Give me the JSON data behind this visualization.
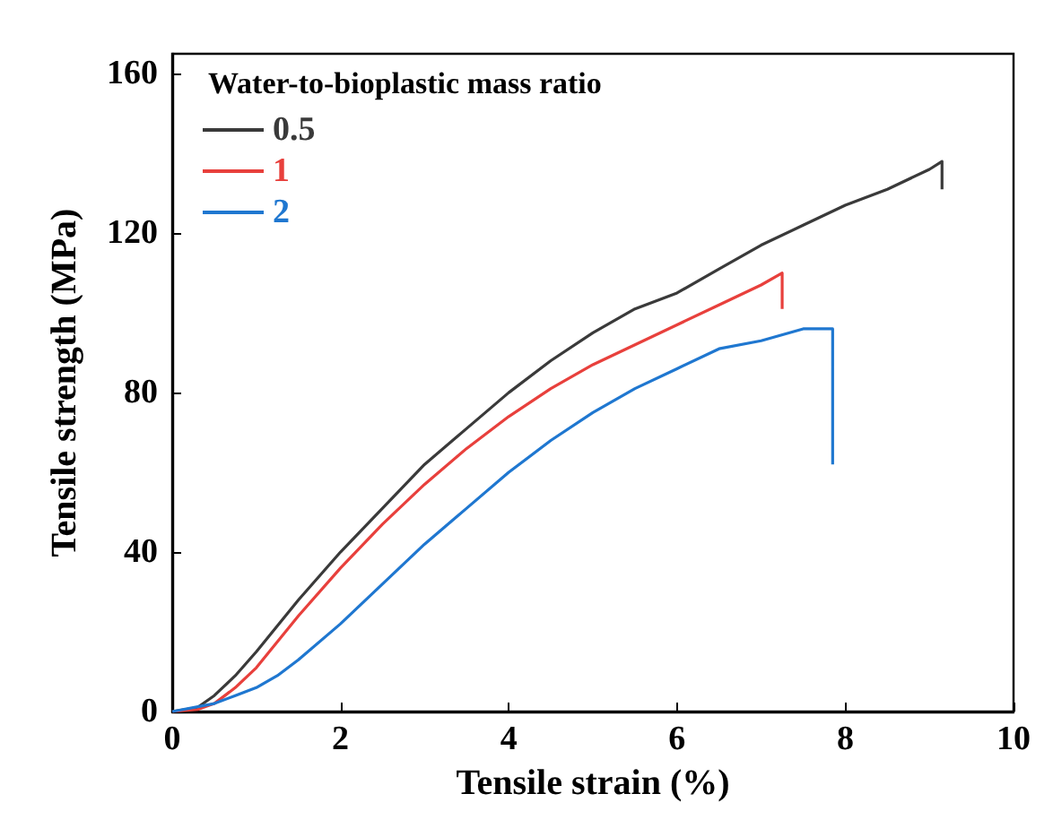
{
  "chart_data": {
    "type": "line",
    "xlabel": "Tensile strain (%)",
    "ylabel": "Tensile strength (MPa)",
    "legend_title": "Water-to-bioplastic mass ratio",
    "legend": "top left",
    "grid": false,
    "marker": "none",
    "line_style": "solid",
    "xlim": [
      0,
      10
    ],
    "xticks": [
      0,
      2,
      4,
      6,
      8,
      10
    ],
    "ylim": [
      0,
      165
    ],
    "yticks": [
      0,
      40,
      80,
      120,
      160
    ],
    "series": [
      {
        "name": "0.5",
        "color": "#3a3a3a",
        "x": [
          0,
          0.3,
          0.5,
          0.75,
          1,
          1.5,
          2,
          2.5,
          3,
          3.5,
          4,
          4.5,
          5,
          5.5,
          6,
          6.5,
          7,
          7.5,
          8,
          8.5,
          9,
          9.15,
          9.15
        ],
        "values": [
          0,
          1,
          4,
          9,
          15,
          28,
          40,
          51,
          62,
          71,
          80,
          88,
          95,
          101,
          105,
          111,
          117,
          122,
          127,
          131,
          136,
          138,
          131
        ]
      },
      {
        "name": "1",
        "color": "#e8403c",
        "x": [
          0,
          0.3,
          0.5,
          0.75,
          1,
          1.5,
          2,
          2.5,
          3,
          3.5,
          4,
          4.5,
          5,
          5.5,
          6,
          6.5,
          7,
          7.25,
          7.25
        ],
        "values": [
          0,
          0.5,
          2,
          6,
          11,
          24,
          36,
          47,
          57,
          66,
          74,
          81,
          87,
          92,
          97,
          102,
          107,
          110,
          101
        ]
      },
      {
        "name": "2",
        "color": "#1f77d0",
        "x": [
          0,
          0.5,
          0.75,
          1,
          1.25,
          1.5,
          2,
          2.5,
          3,
          3.5,
          4,
          4.5,
          5,
          5.5,
          6,
          6.5,
          7,
          7.5,
          7.85,
          7.85
        ],
        "values": [
          0,
          2,
          4,
          6,
          9,
          13,
          22,
          32,
          42,
          51,
          60,
          68,
          75,
          81,
          86,
          91,
          93,
          96,
          96,
          62
        ]
      }
    ]
  }
}
